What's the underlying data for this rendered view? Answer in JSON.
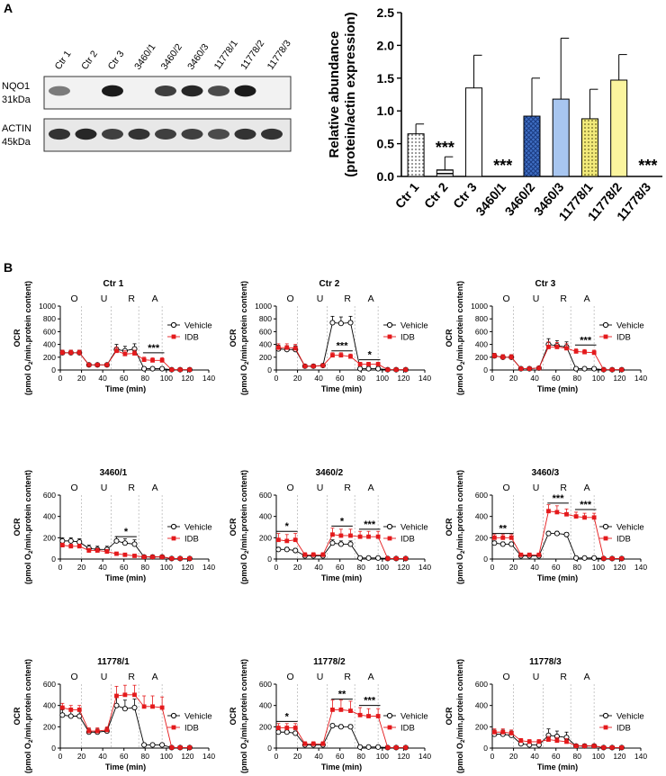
{
  "panels": {
    "a": "A",
    "b": "B"
  },
  "blot": {
    "lanes": [
      "Ctr 1",
      "Ctr 2",
      "Ctr 3",
      "3460/1",
      "3460/2",
      "3460/3",
      "11778/1",
      "11778/2",
      "11778/3"
    ],
    "rows": [
      {
        "name": "NQO1",
        "kda": "31kDa",
        "intensity": [
          0.55,
          0,
          0.95,
          0,
          0.8,
          0.9,
          0.75,
          0.95,
          0
        ]
      },
      {
        "name": "ACTIN",
        "kda": "45kDa",
        "intensity": [
          0.85,
          0.9,
          0.8,
          0.85,
          0.8,
          0.8,
          0.75,
          0.85,
          0.85
        ]
      }
    ]
  },
  "chart_data": [
    {
      "id": "abundance",
      "type": "bar",
      "ylabel_line1": "Relative abundance",
      "ylabel_line2": "(protein/actin expression)",
      "categories": [
        "Ctr 1",
        "Ctr 2",
        "Ctr 3",
        "3460/1",
        "3460/2",
        "3460/3",
        "11778/1",
        "11778/2",
        "11778/3"
      ],
      "values": [
        0.65,
        0.1,
        1.35,
        0.0,
        0.92,
        1.18,
        0.88,
        1.47,
        0.0
      ],
      "errors": [
        0.15,
        0.2,
        0.5,
        0.0,
        0.58,
        0.93,
        0.45,
        0.39,
        0.0
      ],
      "stars": [
        "",
        "***",
        "",
        "***",
        "",
        "",
        "",
        "",
        "***"
      ],
      "fills": [
        "#c9c9c9",
        "#ffffff",
        "#ffffff",
        "#ffffff",
        "#3f6fc4",
        "#a8c6f0",
        "#e6e07a",
        "#fbf59e",
        "#ffffff"
      ],
      "patterns": [
        "dots",
        "stripe",
        "none",
        "none",
        "hatch",
        "none",
        "dots",
        "none",
        "none"
      ],
      "ylim": [
        0,
        2.5
      ],
      "yticks": [
        "0.0",
        "0.5",
        "1.0",
        "1.5",
        "2.0",
        "2.5"
      ]
    },
    {
      "id": "Ctr 1",
      "type": "line",
      "title": "Ctr 1",
      "ylim": [
        0,
        1000
      ],
      "yticks": [
        0,
        200,
        400,
        600,
        800,
        1000
      ],
      "x": [
        2,
        10,
        18,
        27,
        35,
        44,
        53,
        61,
        70,
        79,
        87,
        96,
        105,
        113,
        122
      ],
      "series": [
        {
          "name": "Vehicle",
          "values": [
            270,
            270,
            270,
            80,
            80,
            80,
            320,
            300,
            330,
            20,
            20,
            20,
            5,
            5,
            5
          ],
          "err": [
            40,
            40,
            40,
            20,
            20,
            20,
            80,
            70,
            80,
            5,
            5,
            5,
            2,
            2,
            2
          ]
        },
        {
          "name": "IDB",
          "values": [
            270,
            270,
            270,
            80,
            80,
            80,
            300,
            250,
            260,
            160,
            150,
            150,
            5,
            5,
            5
          ],
          "err": [
            40,
            40,
            40,
            20,
            20,
            20,
            60,
            50,
            50,
            40,
            40,
            40,
            2,
            2,
            2
          ]
        }
      ],
      "sig": [
        {
          "x1": 78,
          "x2": 98,
          "label": "***",
          "y": 270
        }
      ]
    },
    {
      "id": "Ctr 2",
      "type": "line",
      "title": "Ctr 2",
      "ylim": [
        0,
        1000
      ],
      "yticks": [
        0,
        200,
        400,
        600,
        800,
        1000
      ],
      "x": [
        2,
        10,
        18,
        27,
        35,
        44,
        53,
        61,
        70,
        79,
        87,
        96,
        105,
        113,
        122
      ],
      "series": [
        {
          "name": "Vehicle",
          "values": [
            330,
            320,
            320,
            60,
            60,
            70,
            740,
            730,
            740,
            20,
            20,
            20,
            5,
            5,
            5
          ],
          "err": [
            60,
            60,
            60,
            20,
            20,
            20,
            100,
            100,
            100,
            5,
            5,
            5,
            2,
            2,
            2
          ]
        },
        {
          "name": "IDB",
          "values": [
            350,
            350,
            340,
            60,
            60,
            70,
            230,
            230,
            210,
            90,
            90,
            90,
            5,
            5,
            5
          ],
          "err": [
            60,
            60,
            60,
            20,
            20,
            20,
            40,
            40,
            40,
            30,
            30,
            30,
            2,
            2,
            2
          ]
        }
      ],
      "sig": [
        {
          "x1": 52,
          "x2": 72,
          "label": "***",
          "y": 300
        },
        {
          "x1": 78,
          "x2": 98,
          "label": "*",
          "y": 160
        }
      ]
    },
    {
      "id": "Ctr 3",
      "type": "line",
      "title": "Ctr 3",
      "ylim": [
        0,
        1000
      ],
      "yticks": [
        0,
        200,
        400,
        600,
        800,
        1000
      ],
      "x": [
        2,
        10,
        18,
        27,
        35,
        44,
        53,
        61,
        70,
        79,
        87,
        96,
        105,
        113,
        122
      ],
      "series": [
        {
          "name": "Vehicle",
          "values": [
            220,
            200,
            200,
            20,
            20,
            30,
            400,
            380,
            360,
            20,
            20,
            20,
            5,
            5,
            5
          ],
          "err": [
            40,
            40,
            40,
            10,
            10,
            10,
            90,
            80,
            80,
            5,
            5,
            5,
            2,
            2,
            2
          ]
        },
        {
          "name": "IDB",
          "values": [
            220,
            200,
            200,
            20,
            20,
            30,
            360,
            360,
            340,
            290,
            280,
            270,
            5,
            5,
            5
          ],
          "err": [
            40,
            40,
            40,
            10,
            10,
            10,
            80,
            70,
            70,
            40,
            40,
            40,
            2,
            2,
            2
          ]
        }
      ],
      "sig": [
        {
          "x1": 78,
          "x2": 98,
          "label": "***",
          "y": 390
        }
      ]
    },
    {
      "id": "3460/1",
      "type": "line",
      "title": "3460/1",
      "ylim": [
        0,
        600
      ],
      "yticks": [
        0,
        200,
        400,
        600
      ],
      "x": [
        2,
        10,
        18,
        27,
        35,
        44,
        53,
        61,
        70,
        79,
        87,
        96,
        105,
        113,
        122
      ],
      "series": [
        {
          "name": "Vehicle",
          "values": [
            170,
            170,
            160,
            100,
            90,
            90,
            170,
            150,
            140,
            20,
            20,
            20,
            5,
            5,
            5
          ],
          "err": [
            30,
            30,
            30,
            30,
            30,
            30,
            40,
            40,
            40,
            5,
            5,
            5,
            2,
            2,
            2
          ]
        },
        {
          "name": "IDB",
          "values": [
            130,
            120,
            120,
            80,
            80,
            70,
            50,
            40,
            30,
            20,
            20,
            20,
            5,
            5,
            5
          ],
          "err": [
            20,
            20,
            20,
            20,
            20,
            20,
            10,
            10,
            10,
            5,
            5,
            5,
            2,
            2,
            2
          ]
        }
      ],
      "sig": [
        {
          "x1": 52,
          "x2": 72,
          "label": "*",
          "y": 210
        }
      ]
    },
    {
      "id": "3460/2",
      "type": "line",
      "title": "3460/2",
      "ylim": [
        0,
        600
      ],
      "yticks": [
        0,
        200,
        400,
        600
      ],
      "x": [
        2,
        10,
        18,
        27,
        35,
        44,
        53,
        61,
        70,
        79,
        87,
        96,
        105,
        113,
        122
      ],
      "series": [
        {
          "name": "Vehicle",
          "values": [
            90,
            90,
            80,
            30,
            30,
            30,
            150,
            140,
            140,
            10,
            10,
            10,
            5,
            5,
            5
          ],
          "err": [
            20,
            20,
            20,
            10,
            10,
            10,
            30,
            30,
            30,
            5,
            5,
            5,
            2,
            2,
            2
          ]
        },
        {
          "name": "IDB",
          "values": [
            180,
            170,
            180,
            40,
            40,
            40,
            230,
            220,
            220,
            210,
            210,
            210,
            5,
            5,
            5
          ],
          "err": [
            60,
            60,
            60,
            20,
            20,
            20,
            60,
            60,
            60,
            50,
            50,
            50,
            2,
            2,
            2
          ]
        }
      ],
      "sig": [
        {
          "x1": 0,
          "x2": 20,
          "label": "*",
          "y": 260
        },
        {
          "x1": 52,
          "x2": 72,
          "label": "*",
          "y": 310
        },
        {
          "x1": 78,
          "x2": 98,
          "label": "***",
          "y": 280
        }
      ]
    },
    {
      "id": "3460/3",
      "type": "line",
      "title": "3460/3",
      "ylim": [
        0,
        600
      ],
      "yticks": [
        0,
        200,
        400,
        600
      ],
      "x": [
        2,
        10,
        18,
        27,
        35,
        44,
        53,
        61,
        70,
        79,
        87,
        96,
        105,
        113,
        122
      ],
      "series": [
        {
          "name": "Vehicle",
          "values": [
            150,
            140,
            140,
            30,
            30,
            30,
            240,
            240,
            230,
            10,
            10,
            10,
            5,
            5,
            5
          ],
          "err": [
            20,
            20,
            20,
            10,
            10,
            10,
            20,
            20,
            20,
            5,
            5,
            5,
            2,
            2,
            2
          ]
        },
        {
          "name": "IDB",
          "values": [
            200,
            200,
            200,
            40,
            40,
            40,
            450,
            440,
            420,
            400,
            390,
            390,
            5,
            5,
            5
          ],
          "err": [
            30,
            30,
            30,
            10,
            10,
            10,
            60,
            60,
            50,
            40,
            40,
            40,
            2,
            2,
            2
          ]
        }
      ],
      "sig": [
        {
          "x1": 0,
          "x2": 20,
          "label": "**",
          "y": 240
        },
        {
          "x1": 52,
          "x2": 72,
          "label": "***",
          "y": 525
        },
        {
          "x1": 78,
          "x2": 98,
          "label": "***",
          "y": 465
        }
      ]
    },
    {
      "id": "11778/1",
      "type": "line",
      "title": "11778/1",
      "ylim": [
        0,
        600
      ],
      "yticks": [
        0,
        200,
        400,
        600
      ],
      "x": [
        2,
        10,
        18,
        27,
        35,
        44,
        53,
        61,
        70,
        79,
        87,
        96,
        105,
        113,
        122
      ],
      "series": [
        {
          "name": "Vehicle",
          "values": [
            310,
            300,
            300,
            150,
            150,
            160,
            400,
            370,
            380,
            30,
            30,
            30,
            5,
            5,
            5
          ],
          "err": [
            50,
            50,
            50,
            30,
            30,
            30,
            80,
            80,
            80,
            5,
            5,
            5,
            2,
            2,
            2
          ]
        },
        {
          "name": "IDB",
          "values": [
            380,
            360,
            360,
            160,
            160,
            170,
            490,
            500,
            500,
            390,
            390,
            380,
            5,
            5,
            5
          ],
          "err": [
            40,
            40,
            40,
            30,
            30,
            30,
            90,
            90,
            90,
            100,
            100,
            100,
            2,
            2,
            2
          ]
        }
      ],
      "sig": []
    },
    {
      "id": "11778/2",
      "type": "line",
      "title": "11778/2",
      "ylim": [
        0,
        600
      ],
      "yticks": [
        0,
        200,
        400,
        600
      ],
      "x": [
        2,
        10,
        18,
        27,
        35,
        44,
        53,
        61,
        70,
        79,
        87,
        96,
        105,
        113,
        122
      ],
      "series": [
        {
          "name": "Vehicle",
          "values": [
            150,
            150,
            140,
            30,
            30,
            30,
            210,
            200,
            200,
            10,
            10,
            10,
            5,
            5,
            5
          ],
          "err": [
            20,
            20,
            20,
            10,
            10,
            10,
            20,
            20,
            20,
            5,
            5,
            5,
            2,
            2,
            2
          ]
        },
        {
          "name": "IDB",
          "values": [
            190,
            190,
            190,
            40,
            40,
            40,
            360,
            360,
            350,
            310,
            300,
            300,
            5,
            5,
            5
          ],
          "err": [
            40,
            40,
            40,
            20,
            20,
            20,
            90,
            90,
            90,
            70,
            70,
            70,
            2,
            2,
            2
          ]
        }
      ],
      "sig": [
        {
          "x1": 0,
          "x2": 20,
          "label": "*",
          "y": 250
        },
        {
          "x1": 52,
          "x2": 72,
          "label": "**",
          "y": 460
        },
        {
          "x1": 78,
          "x2": 98,
          "label": "***",
          "y": 400
        }
      ]
    },
    {
      "id": "11778/3",
      "type": "line",
      "title": "11778/3",
      "ylim": [
        0,
        600
      ],
      "yticks": [
        0,
        200,
        400,
        600
      ],
      "x": [
        2,
        10,
        18,
        27,
        35,
        44,
        53,
        61,
        70,
        79,
        87,
        96,
        105,
        113,
        122
      ],
      "series": [
        {
          "name": "Vehicle",
          "values": [
            130,
            130,
            120,
            40,
            30,
            30,
            120,
            110,
            100,
            20,
            20,
            20,
            5,
            5,
            5
          ],
          "err": [
            40,
            40,
            40,
            20,
            20,
            20,
            60,
            50,
            50,
            5,
            5,
            5,
            2,
            2,
            2
          ]
        },
        {
          "name": "IDB",
          "values": [
            150,
            150,
            140,
            70,
            60,
            60,
            80,
            70,
            60,
            20,
            20,
            20,
            5,
            5,
            5
          ],
          "err": [
            30,
            30,
            30,
            20,
            20,
            20,
            30,
            30,
            30,
            5,
            5,
            5,
            2,
            2,
            2
          ]
        }
      ],
      "sig": []
    }
  ],
  "ocr": {
    "ylabel_line1": "OCR",
    "ylabel_line2a": "(pmol O",
    "ylabel_sub": "2",
    "ylabel_line2b": "/min.protein content)",
    "xlabel": "Time (min)",
    "xticks": [
      0,
      20,
      40,
      60,
      80,
      100,
      120,
      140
    ],
    "injections": [
      {
        "label": "O",
        "x": 20
      },
      {
        "label": "U",
        "x": 48
      },
      {
        "label": "R",
        "x": 74
      },
      {
        "label": "A",
        "x": 96
      }
    ],
    "legend": [
      "Vehicle",
      "IDB"
    ],
    "colors": {
      "vehicle": "#000000",
      "idb": "#e41a1c"
    }
  }
}
